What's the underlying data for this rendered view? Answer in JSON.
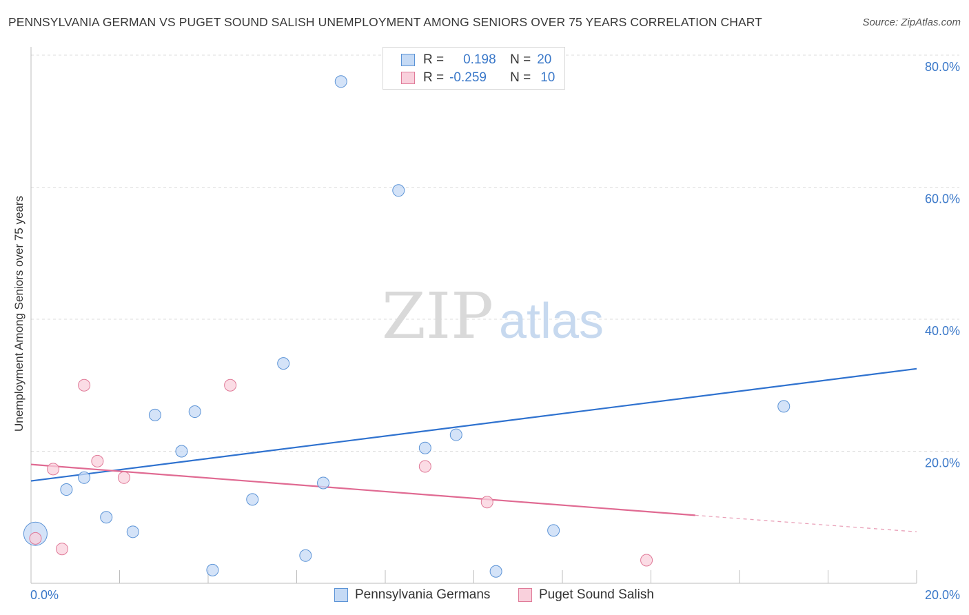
{
  "title": "PENNSYLVANIA GERMAN VS PUGET SOUND SALISH UNEMPLOYMENT AMONG SENIORS OVER 75 YEARS CORRELATION CHART",
  "source": "Source: ZipAtlas.com",
  "watermark": {
    "zip": "ZIP",
    "atlas": "atlas"
  },
  "legend_top": {
    "rows": [
      {
        "r_label": "R =",
        "r_value": "0.198",
        "n_label": "N =",
        "n_value": "20"
      },
      {
        "r_label": "R =",
        "r_value": "-0.259",
        "n_label": "N =",
        "n_value": "10"
      }
    ]
  },
  "legend_bottom": {
    "series1": "Pennsylvania Germans",
    "series2": "Puget Sound Salish"
  },
  "chart_data": {
    "type": "scatter",
    "title": "PENNSYLVANIA GERMAN VS PUGET SOUND SALISH UNEMPLOYMENT AMONG SENIORS OVER 75 YEARS CORRELATION CHART",
    "xlabel": "",
    "ylabel": "Unemployment Among Seniors over 75 years",
    "xlim": [
      0,
      20
    ],
    "ylim": [
      0,
      80
    ],
    "x_tick_labels": [
      {
        "value": 0,
        "label": "0.0%"
      },
      {
        "value": 20,
        "label": "20.0%"
      }
    ],
    "y_tick_labels": [
      {
        "value": 20,
        "label": "20.0%"
      },
      {
        "value": 40,
        "label": "40.0%"
      },
      {
        "value": 60,
        "label": "60.0%"
      },
      {
        "value": 80,
        "label": "80.0%"
      }
    ],
    "series": [
      {
        "name": "Pennsylvania Germans",
        "color": "#5b93d6",
        "fill": "#c5daf5",
        "R": 0.198,
        "N": 20,
        "points": [
          {
            "x": 0.1,
            "y": 7.5,
            "size": "large"
          },
          {
            "x": 0.8,
            "y": 14.2
          },
          {
            "x": 1.2,
            "y": 16.0
          },
          {
            "x": 1.7,
            "y": 10.0
          },
          {
            "x": 2.3,
            "y": 7.8
          },
          {
            "x": 2.8,
            "y": 25.5
          },
          {
            "x": 3.4,
            "y": 20.0
          },
          {
            "x": 3.7,
            "y": 26.0
          },
          {
            "x": 4.1,
            "y": 2.0
          },
          {
            "x": 5.0,
            "y": 12.7
          },
          {
            "x": 5.7,
            "y": 33.3
          },
          {
            "x": 6.2,
            "y": 4.2
          },
          {
            "x": 6.6,
            "y": 15.2
          },
          {
            "x": 7.0,
            "y": 76.0
          },
          {
            "x": 8.3,
            "y": 59.5
          },
          {
            "x": 8.9,
            "y": 20.5
          },
          {
            "x": 9.6,
            "y": 22.5
          },
          {
            "x": 10.5,
            "y": 1.8
          },
          {
            "x": 11.8,
            "y": 8.0
          },
          {
            "x": 17.0,
            "y": 26.8
          }
        ],
        "trend": {
          "x0": 0,
          "y0": 15.5,
          "x1": 20,
          "y1": 32.5
        }
      },
      {
        "name": "Puget Sound Salish",
        "color": "#e07a98",
        "fill": "#f9d0dc",
        "R": -0.259,
        "N": 10,
        "points": [
          {
            "x": 0.1,
            "y": 6.8
          },
          {
            "x": 0.5,
            "y": 17.3
          },
          {
            "x": 0.7,
            "y": 5.2
          },
          {
            "x": 1.2,
            "y": 30.0
          },
          {
            "x": 1.5,
            "y": 18.5
          },
          {
            "x": 2.1,
            "y": 16.0
          },
          {
            "x": 4.5,
            "y": 30.0
          },
          {
            "x": 8.9,
            "y": 17.7
          },
          {
            "x": 10.3,
            "y": 12.3
          },
          {
            "x": 13.9,
            "y": 3.5
          }
        ],
        "trend": {
          "x0": 0,
          "y0": 18.0,
          "x1": 15,
          "y1": 10.3,
          "dashed_to_x": 20,
          "dashed_to_y": 7.8
        }
      }
    ]
  }
}
